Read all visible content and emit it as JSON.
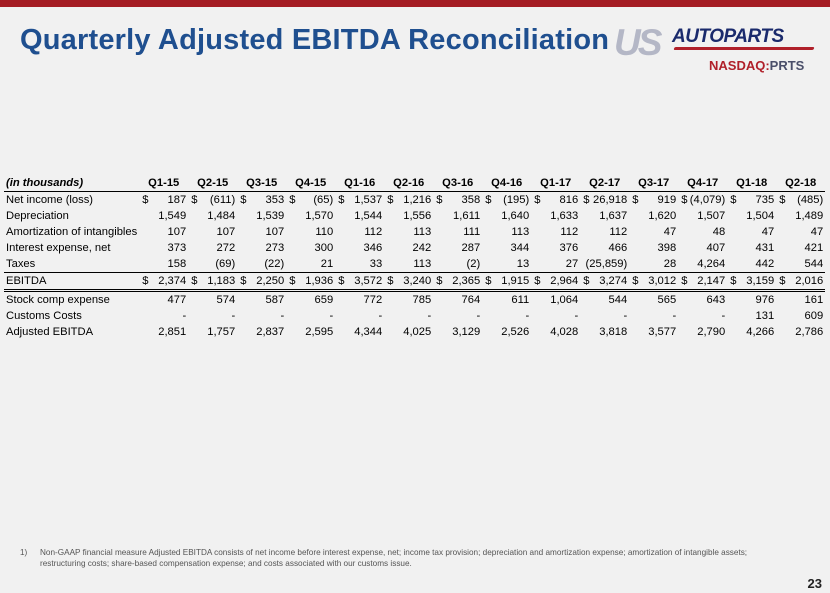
{
  "title": "Quarterly Adjusted EBITDA Reconciliation",
  "logo": {
    "us": "US",
    "autoparts": "AUTOPARTS",
    "nasdaq_prefix": "NASDAQ:",
    "ticker": "PRTS"
  },
  "colors": {
    "accent_red": "#a51c24",
    "title_blue": "#1f4f8f"
  },
  "table": {
    "unit_label": "(in thousands)",
    "columns": [
      "Q1-15",
      "Q2-15",
      "Q3-15",
      "Q4-15",
      "Q1-16",
      "Q2-16",
      "Q3-16",
      "Q4-16",
      "Q1-17",
      "Q2-17",
      "Q3-17",
      "Q4-17",
      "Q1-18",
      "Q2-18"
    ],
    "rows": [
      {
        "label": "Net income (loss)",
        "dollar": true,
        "values": [
          "187",
          "(611)",
          "353",
          "(65)",
          "1,537",
          "1,216",
          "358",
          "(195)",
          "816",
          "26,918",
          "919",
          "(4,079)",
          "735",
          "(485)"
        ]
      },
      {
        "label": "Depreciation",
        "values": [
          "1,549",
          "1,484",
          "1,539",
          "1,570",
          "1,544",
          "1,556",
          "1,611",
          "1,640",
          "1,633",
          "1,637",
          "1,620",
          "1,507",
          "1,504",
          "1,489"
        ]
      },
      {
        "label": "Amortization of intangibles",
        "values": [
          "107",
          "107",
          "107",
          "110",
          "112",
          "113",
          "111",
          "113",
          "112",
          "112",
          "47",
          "48",
          "47",
          "47"
        ]
      },
      {
        "label": "Interest expense, net",
        "values": [
          "373",
          "272",
          "273",
          "300",
          "346",
          "242",
          "287",
          "344",
          "376",
          "466",
          "398",
          "407",
          "431",
          "421"
        ]
      },
      {
        "label": "Taxes",
        "values": [
          "158",
          "(69)",
          "(22)",
          "21",
          "33",
          "113",
          "(2)",
          "13",
          "27",
          "(25,859)",
          "28",
          "4,264",
          "442",
          "544"
        ]
      },
      {
        "label": "EBITDA",
        "dollar": true,
        "values": [
          "2,374",
          "1,183",
          "2,250",
          "1,936",
          "3,572",
          "3,240",
          "2,365",
          "1,915",
          "2,964",
          "3,274",
          "3,012",
          "2,147",
          "3,159",
          "2,016"
        ]
      },
      {
        "label": "Stock comp expense",
        "values": [
          "477",
          "574",
          "587",
          "659",
          "772",
          "785",
          "764",
          "611",
          "1,064",
          "544",
          "565",
          "643",
          "976",
          "161"
        ]
      },
      {
        "label": "Customs Costs",
        "values": [
          "-",
          "-",
          "-",
          "-",
          "-",
          "-",
          "-",
          "-",
          "-",
          "-",
          "-",
          "-",
          "131",
          "609"
        ]
      },
      {
        "label": "Adjusted EBITDA",
        "values": [
          "2,851",
          "1,757",
          "2,837",
          "2,595",
          "4,344",
          "4,025",
          "3,129",
          "2,526",
          "4,028",
          "3,818",
          "3,577",
          "2,790",
          "4,266",
          "2,786"
        ]
      }
    ],
    "currency_symbol": "$"
  },
  "footnote": {
    "number": "1)",
    "text": "Non-GAAP financial measure Adjusted EBITDA consists of net income before interest expense, net;  income tax provision; depreciation and amortization expense; amortization of intangible assets; restructuring costs; share-based compensation expense; and costs associated with our customs issue."
  },
  "page_number": "23"
}
